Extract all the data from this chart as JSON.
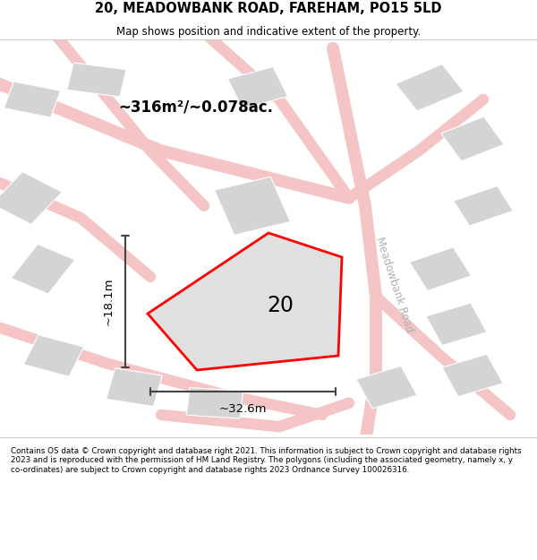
{
  "title_line1": "20, MEADOWBANK ROAD, FAREHAM, PO15 5LD",
  "title_line2": "Map shows position and indicative extent of the property.",
  "footer_text": "Contains OS data © Crown copyright and database right 2021. This information is subject to Crown copyright and database rights 2023 and is reproduced with the permission of HM Land Registry. The polygons (including the associated geometry, namely x, y co-ordinates) are subject to Crown copyright and database rights 2023 Ordnance Survey 100026316.",
  "bg_color": "#ffffff",
  "road_color": "#f5c5c5",
  "building_fill": "#d4d4d4",
  "building_edge": "#ffffff",
  "plot_fill": "#e0e0e0",
  "plot_edge": "#ff0000",
  "plot_edge_width": 2.0,
  "label_20": "20",
  "area_label": "~316m²/~0.078ac.",
  "width_label": "~32.6m",
  "height_label": "~18.1m",
  "road_label": "Meadowbank Road",
  "dim_color": "#444444",
  "road_lw": 8,
  "map_bg": "#fafafa"
}
